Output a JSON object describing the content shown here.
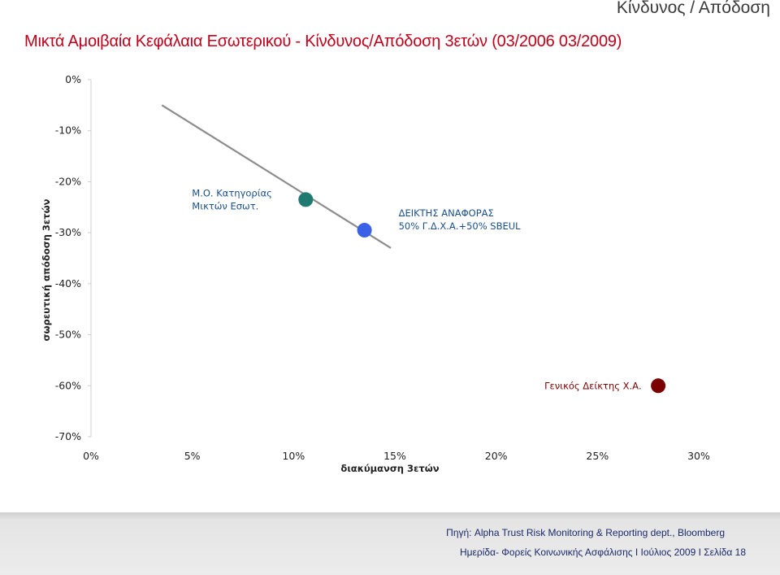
{
  "header": {
    "corner_title": "Κίνδυνος / Απόδοση",
    "main_title": "Μικτά Αμοιβαία Κεφάλαια Εσωτερικού - Κίνδυνος/Απόδοση 3ετών (03/2006 03/2009)"
  },
  "chart_data": {
    "type": "scatter",
    "xlabel": "διακύμανση 3ετών",
    "ylabel": "σωρευτική απόδοση 3ετών",
    "xlim": [
      0,
      30
    ],
    "ylim": [
      -70,
      0
    ],
    "x_ticks": [
      "0%",
      "5%",
      "10%",
      "15%",
      "20%",
      "25%",
      "30%"
    ],
    "y_ticks": [
      "0%",
      "-10%",
      "-20%",
      "-30%",
      "-40%",
      "-50%",
      "-60%",
      "-70%"
    ],
    "grid": false,
    "trend_line": {
      "x": [
        3.5,
        14.8
      ],
      "y": [
        -5,
        -33
      ],
      "color": "#8c8c8c"
    },
    "points": [
      {
        "x": 10.6,
        "y": -23.5,
        "color": "#1f7a72",
        "label": [
          "Μ.Ο. Κατηγορίας",
          "Μικτών Εσωτ."
        ],
        "label_color": "#1a4f8a"
      },
      {
        "x": 13.5,
        "y": -29.5,
        "color": "#3a62e6",
        "label": [
          "ΔΕΙΚΤΗΣ ΑΝΑΦΟΡΑΣ",
          "50% Γ.Δ.Χ.Α.+50% SBEUL"
        ],
        "label_color": "#1a4f8a"
      },
      {
        "x": 28.0,
        "y": -60.0,
        "color": "#7a0000",
        "label": [
          "Γενικός Δείκτης Χ.Α."
        ],
        "label_color": "#7a0000"
      }
    ]
  },
  "footer": {
    "source": "Πηγή: Alpha Trust Risk Monitoring & Reporting dept., Bloomberg",
    "event": "Ημερίδα- Φορείς Κοινωνικής Ασφάλισης  Ι  Ιούλιος 2009  Ι  Σελίδα  18"
  }
}
